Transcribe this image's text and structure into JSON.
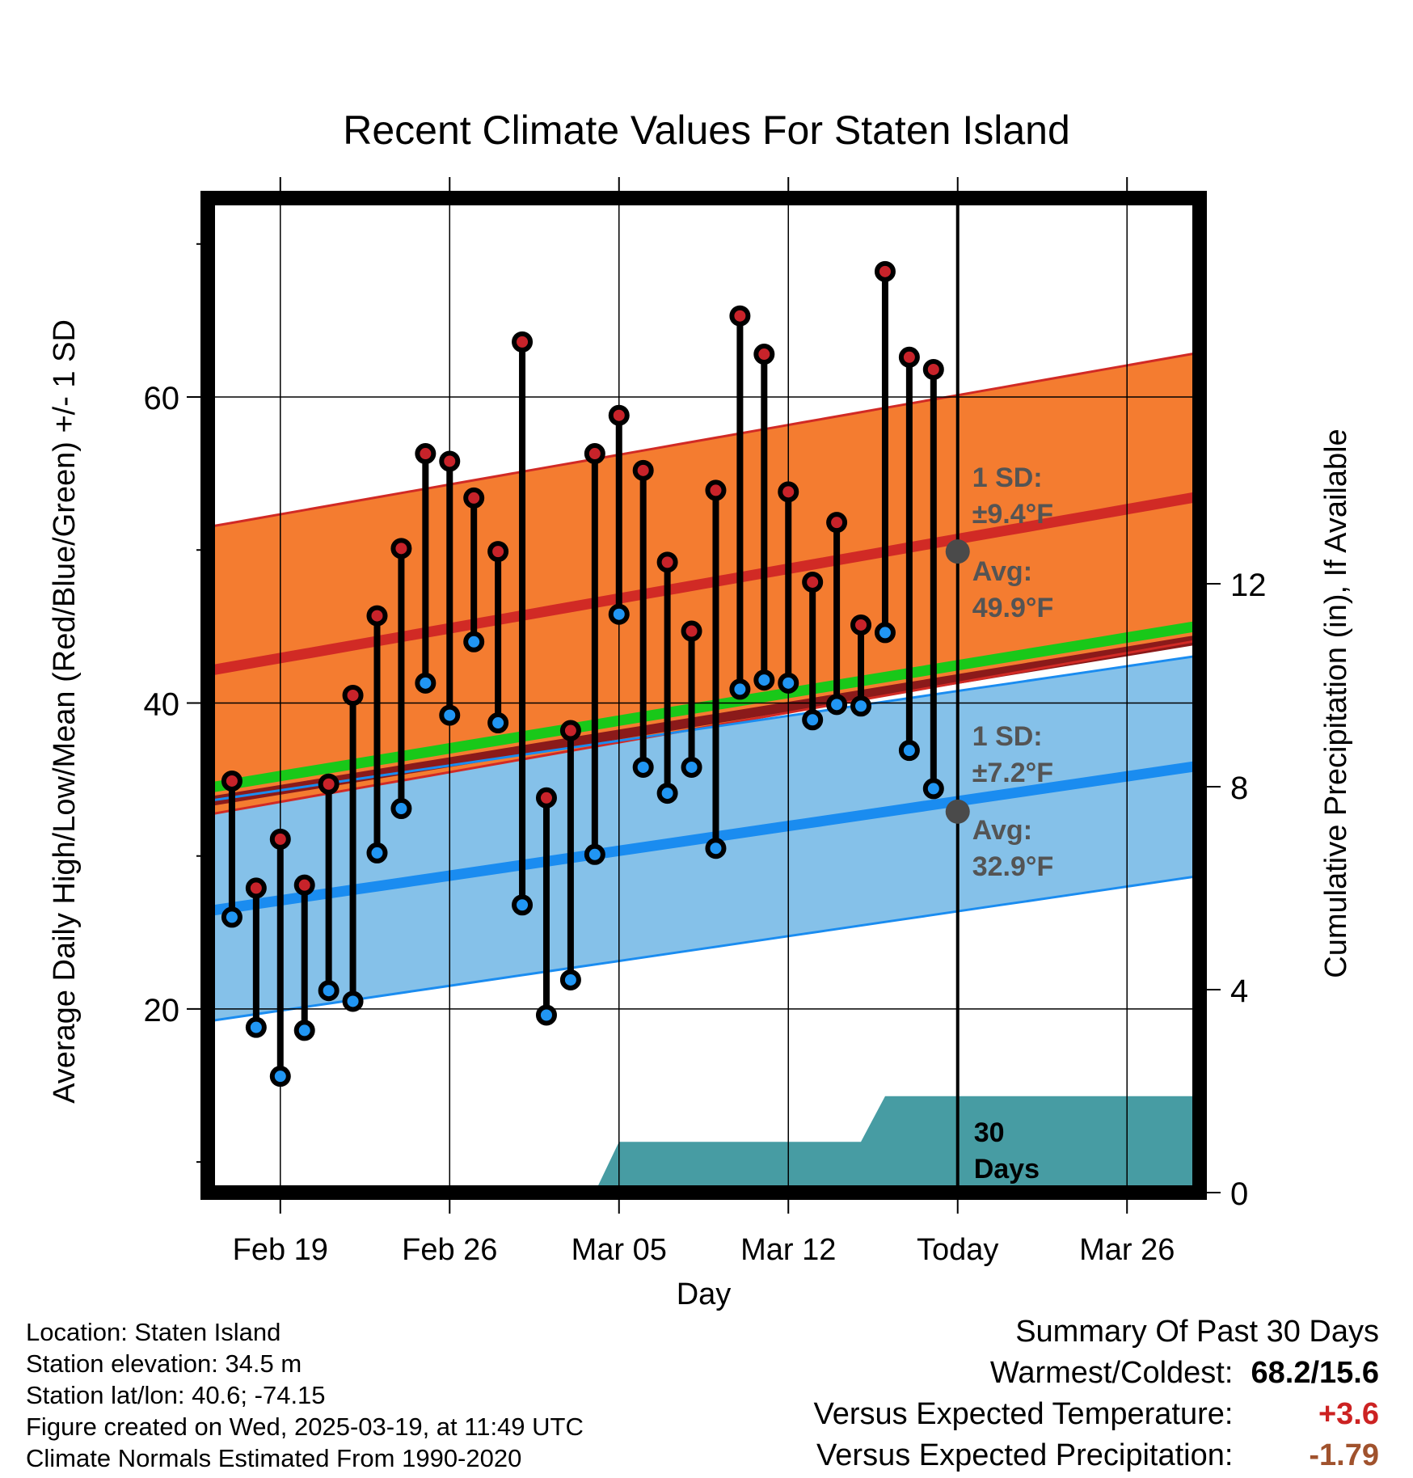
{
  "title": "Recent Climate Values For Staten Island",
  "info": {
    "location": "Location: Staten Island",
    "elevation": "Station elevation: 34.5 m",
    "latlon": "Station lat/lon: 40.6; -74.15",
    "created": "Figure created on Wed, 2025-03-19, at 11:49 UTC",
    "normals": "Climate Normals Estimated From 1990-2020"
  },
  "summary": {
    "heading": "Summary Of Past 30 Days",
    "warmest_label": "Warmest/Coldest:",
    "warmest_value": "68.2/15.6",
    "temp_label": "Versus Expected Temperature:",
    "temp_value": "+3.6",
    "temp_color": "#cc2222",
    "precip_label": "Versus Expected Precipitation:",
    "precip_value": "-1.79",
    "precip_color": "#a0522d"
  },
  "chart_data": {
    "type": "line",
    "title": "Recent Climate Values For Staten Island",
    "xlabel": "Day",
    "ylabel": "Average Daily High/Low/Mean (Red/Blue/Green) +/- 1 SD",
    "y2label": "Cumulative Precipitation (in), If Available",
    "x_ticks": [
      "Feb 19",
      "Feb 26",
      "Mar 05",
      "Mar 12",
      "Today",
      "Mar 26"
    ],
    "xlim": [
      "2025-02-16",
      "2025-03-29"
    ],
    "ylim": [
      8,
      73
    ],
    "y_ticks": [
      20,
      40,
      60
    ],
    "y2lim": [
      0,
      19.6
    ],
    "y2_ticks": [
      0,
      4,
      8,
      12
    ],
    "today": "2025-03-19",
    "grid": true,
    "colors": {
      "high_band": "#f47c30",
      "high_line": "#d12a25",
      "low_band": "#85c1e9",
      "low_line": "#1a8cf0",
      "mean_line": "#19c819",
      "mean_dark": "#8b1a1a",
      "precip": "#479ca3",
      "high_dot": "#c8232a",
      "low_dot": "#2196f3",
      "annotation": "#545454"
    },
    "normals": {
      "dates": [
        "2025-02-16",
        "2025-03-29"
      ],
      "high_avg": [
        42.1,
        53.5
      ],
      "high_sd": 9.4,
      "low_avg": [
        26.4,
        35.9
      ],
      "low_sd": 7.2,
      "mean_avg": [
        34.1,
        44.7
      ]
    },
    "annotations": {
      "high_sd_title": "1 SD:",
      "high_sd_value": "±9.4°F",
      "high_avg_title": "Avg:",
      "high_avg_value": "49.9°F",
      "high_avg_today": 49.9,
      "low_sd_title": "1 SD:",
      "low_sd_value": "±7.2°F",
      "low_avg_title": "Avg:",
      "low_avg_value": "32.9°F",
      "low_avg_today": 32.9,
      "precip_label_1": "30",
      "precip_label_2": "Days"
    },
    "observed": {
      "dates": [
        "2025-02-17",
        "2025-02-18",
        "2025-02-19",
        "2025-02-20",
        "2025-02-21",
        "2025-02-22",
        "2025-02-23",
        "2025-02-24",
        "2025-02-25",
        "2025-02-26",
        "2025-02-27",
        "2025-02-28",
        "2025-03-01",
        "2025-03-02",
        "2025-03-03",
        "2025-03-04",
        "2025-03-05",
        "2025-03-06",
        "2025-03-07",
        "2025-03-08",
        "2025-03-09",
        "2025-03-10",
        "2025-03-11",
        "2025-03-12",
        "2025-03-13",
        "2025-03-14",
        "2025-03-15",
        "2025-03-16",
        "2025-03-17",
        "2025-03-18"
      ],
      "high": [
        34.9,
        27.9,
        31.1,
        28.1,
        34.7,
        40.5,
        45.7,
        50.1,
        56.3,
        55.8,
        53.4,
        49.9,
        63.6,
        33.8,
        38.2,
        56.3,
        58.8,
        55.2,
        49.2,
        44.7,
        53.9,
        65.3,
        62.8,
        53.8,
        47.9,
        51.8,
        45.1,
        68.2,
        62.6,
        61.8
      ],
      "low": [
        26.0,
        18.8,
        15.6,
        18.6,
        21.2,
        20.5,
        30.2,
        33.1,
        41.3,
        39.2,
        44.0,
        38.7,
        26.8,
        19.6,
        21.9,
        30.1,
        45.8,
        35.8,
        34.1,
        35.8,
        30.5,
        40.9,
        41.5,
        41.3,
        38.9,
        39.9,
        39.8,
        44.6,
        36.9,
        34.4
      ]
    },
    "precip": {
      "dates": [
        "2025-03-04",
        "2025-03-05",
        "2025-03-15",
        "2025-03-16",
        "2025-03-29"
      ],
      "values": [
        0,
        1.0,
        1.0,
        1.9,
        1.9
      ]
    }
  }
}
